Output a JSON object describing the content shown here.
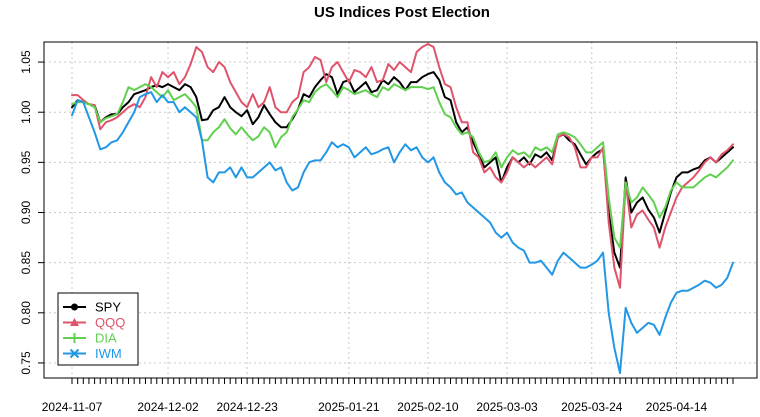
{
  "chart_data": {
    "type": "line",
    "title": "US Indices Post Election",
    "xlabel": "",
    "ylabel": "",
    "ylim": [
      0.735,
      1.07
    ],
    "y_ticks": [
      0.75,
      0.8,
      0.85,
      0.9,
      0.95,
      1.0,
      1.05
    ],
    "y_tick_labels": [
      "0.75",
      "0.80",
      "0.85",
      "0.90",
      "0.95",
      "1.00",
      "1.05"
    ],
    "x_tick_labels": [
      "2024-11-07",
      "2024-12-02",
      "2024-12-23",
      "2025-01-21",
      "2025-02-10",
      "2025-03-03",
      "2025-03-24",
      "2025-04-14"
    ],
    "x_tick_days": [
      0,
      17,
      31,
      49,
      63,
      77,
      92,
      107
    ],
    "x_days": [
      0,
      1,
      2,
      3,
      4,
      5,
      6,
      7,
      8,
      9,
      10,
      11,
      12,
      13,
      14,
      15,
      16,
      17,
      18,
      19,
      20,
      21,
      22,
      23,
      24,
      25,
      26,
      27,
      28,
      29,
      30,
      31,
      32,
      33,
      34,
      35,
      36,
      37,
      38,
      39,
      40,
      41,
      42,
      43,
      44,
      45,
      46,
      47,
      48,
      49,
      50,
      51,
      52,
      53,
      54,
      55,
      56,
      57,
      58,
      59,
      60,
      61,
      62,
      63,
      64,
      65,
      66,
      67,
      68,
      69,
      70,
      71,
      72,
      73,
      74,
      75,
      76,
      77,
      78,
      79,
      80,
      81,
      82,
      83,
      84,
      85,
      86,
      87,
      88,
      89,
      90,
      91,
      92,
      93,
      94,
      95,
      96,
      97,
      98,
      99,
      100,
      101,
      102,
      103,
      104,
      105,
      106,
      107,
      108,
      109,
      110,
      111,
      112,
      113,
      114,
      115,
      116,
      117
    ],
    "grid": true,
    "legend_position": "bottom-left",
    "series": [
      {
        "name": "SPY",
        "color": "#000000",
        "marker": "circle",
        "values": [
          1.005,
          1.012,
          1.01,
          1.008,
          1.007,
          0.99,
          0.995,
          0.998,
          0.998,
          1.005,
          1.01,
          1.018,
          1.02,
          1.022,
          1.025,
          1.027,
          1.025,
          1.028,
          1.025,
          1.022,
          1.028,
          1.025,
          1.015,
          0.992,
          0.993,
          1.002,
          1.005,
          1.015,
          1.005,
          1.0,
          0.996,
          1.002,
          0.988,
          0.995,
          1.007,
          0.998,
          0.99,
          0.985,
          0.985,
          0.993,
          1.003,
          1.018,
          1.015,
          1.025,
          1.032,
          1.038,
          1.035,
          1.018,
          1.03,
          1.032,
          1.02,
          1.025,
          1.03,
          1.02,
          1.022,
          1.032,
          1.028,
          1.035,
          1.03,
          1.022,
          1.03,
          1.03,
          1.035,
          1.038,
          1.04,
          1.032,
          1.015,
          1.012,
          0.99,
          0.98,
          0.985,
          0.97,
          0.958,
          0.945,
          0.95,
          0.955,
          0.93,
          0.945,
          0.955,
          0.95,
          0.955,
          0.948,
          0.958,
          0.955,
          0.96,
          0.952,
          0.975,
          0.978,
          0.972,
          0.968,
          0.958,
          0.948,
          0.955,
          0.96,
          0.963,
          0.9,
          0.86,
          0.845,
          0.935,
          0.9,
          0.91,
          0.915,
          0.903,
          0.895,
          0.88,
          0.9,
          0.92,
          0.935,
          0.94,
          0.94,
          0.943,
          0.945,
          0.952,
          0.955,
          0.95,
          0.955,
          0.96,
          0.965
        ]
      },
      {
        "name": "QQQ",
        "color": "#DF536B",
        "marker": "triangle",
        "values": [
          1.017,
          1.017,
          1.012,
          1.008,
          1.007,
          0.983,
          0.99,
          0.992,
          0.995,
          1.0,
          1.005,
          1.008,
          1.005,
          1.015,
          1.035,
          1.025,
          1.04,
          1.035,
          1.04,
          1.028,
          1.035,
          1.048,
          1.065,
          1.06,
          1.045,
          1.04,
          1.05,
          1.045,
          1.03,
          1.02,
          1.01,
          1.005,
          1.018,
          1.005,
          1.01,
          1.025,
          1.005,
          1.0,
          1.0,
          1.01,
          1.015,
          1.04,
          1.045,
          1.055,
          1.052,
          1.03,
          1.045,
          1.05,
          1.04,
          1.03,
          1.042,
          1.04,
          1.035,
          1.045,
          1.03,
          1.032,
          1.048,
          1.042,
          1.05,
          1.045,
          1.04,
          1.06,
          1.065,
          1.068,
          1.065,
          1.045,
          1.028,
          1.025,
          1.005,
          0.99,
          0.99,
          0.96,
          0.955,
          0.94,
          0.945,
          0.935,
          0.93,
          0.94,
          0.955,
          0.95,
          0.945,
          0.95,
          0.945,
          0.95,
          0.955,
          0.948,
          0.975,
          0.978,
          0.975,
          0.965,
          0.945,
          0.945,
          0.955,
          0.955,
          0.965,
          0.89,
          0.845,
          0.825,
          0.93,
          0.885,
          0.898,
          0.902,
          0.893,
          0.885,
          0.865,
          0.885,
          0.9,
          0.915,
          0.925,
          0.93,
          0.935,
          0.942,
          0.95,
          0.955,
          0.95,
          0.958,
          0.962,
          0.968
        ]
      },
      {
        "name": "DIA",
        "color": "#61D04F",
        "marker": "plus",
        "values": [
          1.008,
          1.01,
          1.01,
          1.008,
          1.005,
          0.99,
          0.994,
          0.996,
          0.998,
          1.01,
          1.025,
          1.022,
          1.025,
          1.028,
          1.025,
          1.02,
          1.015,
          1.022,
          1.012,
          1.015,
          1.018,
          1.012,
          1.005,
          0.972,
          0.972,
          0.98,
          0.985,
          0.993,
          0.984,
          0.978,
          0.985,
          0.978,
          0.972,
          0.976,
          0.985,
          0.98,
          0.965,
          0.975,
          0.98,
          0.995,
          1.003,
          1.012,
          1.01,
          1.02,
          1.025,
          1.028,
          1.022,
          1.015,
          1.025,
          1.022,
          1.018,
          1.02,
          1.022,
          1.018,
          1.015,
          1.025,
          1.022,
          1.028,
          1.025,
          1.022,
          1.025,
          1.025,
          1.025,
          1.023,
          1.025,
          1.01,
          0.998,
          0.995,
          0.985,
          0.978,
          0.98,
          0.975,
          0.96,
          0.95,
          0.952,
          0.96,
          0.945,
          0.955,
          0.962,
          0.958,
          0.96,
          0.955,
          0.965,
          0.962,
          0.965,
          0.96,
          0.978,
          0.98,
          0.978,
          0.975,
          0.968,
          0.96,
          0.96,
          0.965,
          0.97,
          0.915,
          0.875,
          0.865,
          0.93,
          0.91,
          0.915,
          0.925,
          0.918,
          0.91,
          0.895,
          0.905,
          0.922,
          0.93,
          0.925,
          0.925,
          0.925,
          0.93,
          0.935,
          0.938,
          0.935,
          0.94,
          0.945,
          0.952
        ]
      },
      {
        "name": "IWM",
        "color": "#2297E6",
        "marker": "cross",
        "values": [
          0.997,
          1.012,
          1.01,
          0.995,
          0.98,
          0.963,
          0.965,
          0.97,
          0.972,
          0.98,
          0.99,
          1.0,
          1.015,
          1.018,
          1.02,
          1.01,
          1.017,
          1.01,
          1.01,
          1.0,
          1.005,
          1.0,
          0.995,
          0.972,
          0.935,
          0.93,
          0.94,
          0.94,
          0.945,
          0.935,
          0.945,
          0.935,
          0.935,
          0.94,
          0.945,
          0.95,
          0.942,
          0.945,
          0.93,
          0.922,
          0.925,
          0.94,
          0.95,
          0.952,
          0.952,
          0.96,
          0.97,
          0.965,
          0.968,
          0.965,
          0.955,
          0.96,
          0.965,
          0.958,
          0.96,
          0.963,
          0.965,
          0.95,
          0.96,
          0.968,
          0.962,
          0.965,
          0.955,
          0.95,
          0.955,
          0.94,
          0.93,
          0.925,
          0.918,
          0.92,
          0.91,
          0.905,
          0.9,
          0.895,
          0.89,
          0.88,
          0.875,
          0.88,
          0.87,
          0.865,
          0.862,
          0.85,
          0.85,
          0.852,
          0.845,
          0.838,
          0.852,
          0.86,
          0.855,
          0.85,
          0.845,
          0.845,
          0.848,
          0.852,
          0.86,
          0.8,
          0.765,
          0.74,
          0.805,
          0.79,
          0.78,
          0.785,
          0.79,
          0.788,
          0.778,
          0.795,
          0.81,
          0.82,
          0.822,
          0.822,
          0.825,
          0.828,
          0.832,
          0.83,
          0.825,
          0.828,
          0.835,
          0.85
        ]
      }
    ]
  }
}
